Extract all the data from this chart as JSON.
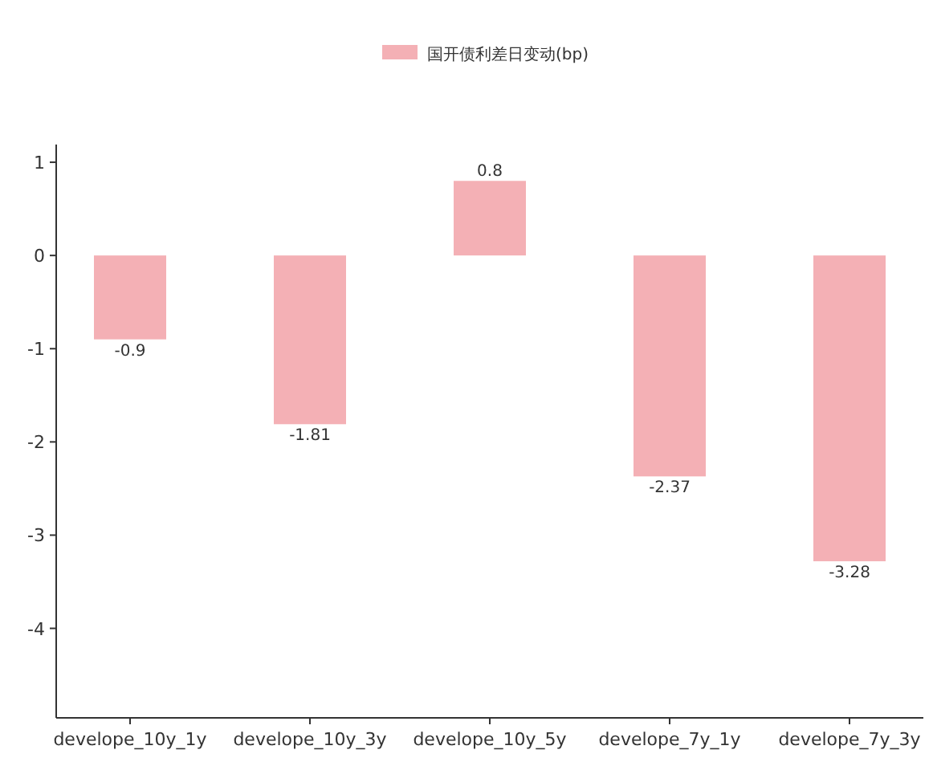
{
  "chart_data": {
    "type": "bar",
    "categories": [
      "develope_10y_1y",
      "develope_10y_3y",
      "develope_10y_5y",
      "develope_7y_1y",
      "develope_7y_3y"
    ],
    "series": [
      {
        "name": "国开债利差日变动(bp)",
        "color": "#f4b0b5",
        "values": [
          -0.9,
          -1.81,
          0.8,
          -2.37,
          -3.28
        ]
      }
    ],
    "ylim": [
      -4.96,
      1.19
    ],
    "yticks": [
      1,
      0,
      -1,
      -2,
      -3,
      -4
    ],
    "data_labels": true,
    "legend": "top",
    "grid": false
  }
}
